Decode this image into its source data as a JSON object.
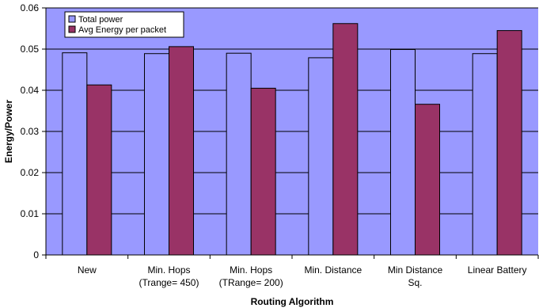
{
  "chart_data": {
    "type": "bar",
    "title": "",
    "xlabel": "Routing Algorithm",
    "ylabel": "Energy/Power",
    "ylim": [
      0,
      0.06
    ],
    "yticks": [
      "0",
      "0.01",
      "0.02",
      "0.03",
      "0.04",
      "0.05",
      "0.06"
    ],
    "grid": true,
    "legend_position": "top-left",
    "categories": [
      [
        "New"
      ],
      [
        "Min. Hops",
        "(Trange= 450)"
      ],
      [
        "Min. Hops",
        "(TRange= 200)"
      ],
      [
        "Min. Distance"
      ],
      [
        "Min Distance",
        "Sq."
      ],
      [
        "Linear Battery"
      ]
    ],
    "series": [
      {
        "name": "Total power",
        "color": "#9999ff",
        "values": [
          0.0491,
          0.0489,
          0.049,
          0.0479,
          0.0499,
          0.0489
        ]
      },
      {
        "name": "Avg Energy per packet",
        "color": "#993366",
        "values": [
          0.0413,
          0.0506,
          0.0405,
          0.0562,
          0.0366,
          0.0545
        ]
      }
    ],
    "plot_background": "#9999ff"
  }
}
